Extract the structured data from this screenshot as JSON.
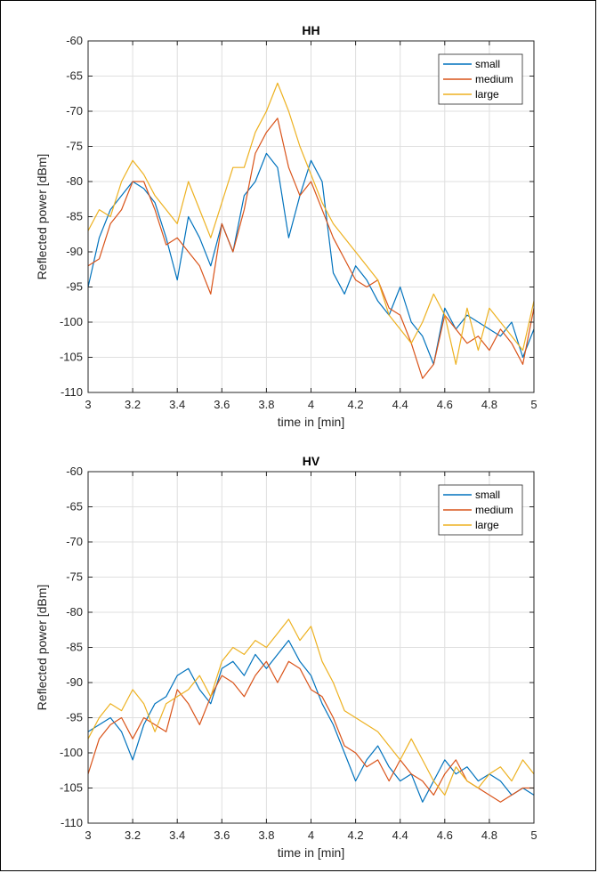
{
  "chart_data": [
    {
      "type": "line",
      "title": "HH",
      "xlabel": "time in [min]",
      "ylabel": "Reflected power [dBm]",
      "xlim": [
        3,
        5
      ],
      "ylim": [
        -110,
        -60
      ],
      "xticks": [
        3,
        3.2,
        3.4,
        3.6,
        3.8,
        4,
        4.2,
        4.4,
        4.6,
        4.8,
        5
      ],
      "xtick_labels": [
        "3",
        "3.2",
        "3.4",
        "3.6",
        "3.8",
        "4",
        "4.2",
        "4.4",
        "4.6",
        "4.8",
        "5"
      ],
      "yticks": [
        -110,
        -105,
        -100,
        -95,
        -90,
        -85,
        -80,
        -75,
        -70,
        -65,
        -60
      ],
      "ytick_labels": [
        "-110",
        "-105",
        "-100",
        "-95",
        "-90",
        "-85",
        "-80",
        "-75",
        "-70",
        "-65",
        "-60"
      ],
      "grid": true,
      "legend_position": "top-right",
      "x": [
        3.0,
        3.05,
        3.1,
        3.15,
        3.2,
        3.25,
        3.3,
        3.35,
        3.4,
        3.45,
        3.5,
        3.55,
        3.6,
        3.65,
        3.7,
        3.75,
        3.8,
        3.85,
        3.9,
        3.95,
        4.0,
        4.05,
        4.1,
        4.15,
        4.2,
        4.25,
        4.3,
        4.35,
        4.4,
        4.45,
        4.5,
        4.55,
        4.6,
        4.65,
        4.7,
        4.75,
        4.8,
        4.85,
        4.9,
        4.95,
        5.0
      ],
      "series": [
        {
          "name": "small",
          "color": "#0072BD",
          "values": [
            -95,
            -88,
            -84,
            -82,
            -80,
            -81,
            -83,
            -88,
            -94,
            -85,
            -88,
            -92,
            -86,
            -90,
            -82,
            -80,
            -76,
            -78,
            -88,
            -82,
            -77,
            -80,
            -93,
            -96,
            -92,
            -94,
            -97,
            -99,
            -95,
            -100,
            -102,
            -106,
            -98,
            -101,
            -99,
            -100,
            -101,
            -102,
            -100,
            -105,
            -101
          ]
        },
        {
          "name": "medium",
          "color": "#D95319",
          "values": [
            -92,
            -91,
            -86,
            -84,
            -80,
            -80,
            -84,
            -89,
            -88,
            -90,
            -92,
            -96,
            -86,
            -90,
            -84,
            -76,
            -73,
            -71,
            -78,
            -82,
            -80,
            -84,
            -88,
            -91,
            -94,
            -95,
            -94,
            -98,
            -99,
            -103,
            -108,
            -106,
            -99,
            -101,
            -103,
            -102,
            -104,
            -101,
            -103,
            -106,
            -98
          ]
        },
        {
          "name": "large",
          "color": "#EDB120",
          "values": [
            -87,
            -84,
            -85,
            -80,
            -77,
            -79,
            -82,
            -84,
            -86,
            -80,
            -84,
            -88,
            -83,
            -78,
            -78,
            -73,
            -70,
            -66,
            -70,
            -75,
            -79,
            -83,
            -86,
            -88,
            -90,
            -92,
            -94,
            -99,
            -101,
            -103,
            -100,
            -96,
            -99,
            -106,
            -98,
            -104,
            -98,
            -100,
            -102,
            -104,
            -97
          ]
        }
      ]
    },
    {
      "type": "line",
      "title": "HV",
      "xlabel": "time in [min]",
      "ylabel": "Reflected power [dBm]",
      "xlim": [
        3,
        5
      ],
      "ylim": [
        -110,
        -60
      ],
      "xticks": [
        3,
        3.2,
        3.4,
        3.6,
        3.8,
        4,
        4.2,
        4.4,
        4.6,
        4.8,
        5
      ],
      "xtick_labels": [
        "3",
        "3.2",
        "3.4",
        "3.6",
        "3.8",
        "4",
        "4.2",
        "4.4",
        "4.6",
        "4.8",
        "5"
      ],
      "yticks": [
        -110,
        -105,
        -100,
        -95,
        -90,
        -85,
        -80,
        -75,
        -70,
        -65,
        -60
      ],
      "ytick_labels": [
        "-110",
        "-105",
        "-100",
        "-95",
        "-90",
        "-85",
        "-80",
        "-75",
        "-70",
        "-65",
        "-60"
      ],
      "grid": true,
      "legend_position": "top-right",
      "x": [
        3.0,
        3.05,
        3.1,
        3.15,
        3.2,
        3.25,
        3.3,
        3.35,
        3.4,
        3.45,
        3.5,
        3.55,
        3.6,
        3.65,
        3.7,
        3.75,
        3.8,
        3.85,
        3.9,
        3.95,
        4.0,
        4.05,
        4.1,
        4.15,
        4.2,
        4.25,
        4.3,
        4.35,
        4.4,
        4.45,
        4.5,
        4.55,
        4.6,
        4.65,
        4.7,
        4.75,
        4.8,
        4.85,
        4.9,
        4.95,
        5.0
      ],
      "series": [
        {
          "name": "small",
          "color": "#0072BD",
          "values": [
            -97,
            -96,
            -95,
            -97,
            -101,
            -96,
            -93,
            -92,
            -89,
            -88,
            -91,
            -93,
            -88,
            -87,
            -89,
            -86,
            -88,
            -86,
            -84,
            -87,
            -89,
            -93,
            -96,
            -100,
            -104,
            -101,
            -99,
            -102,
            -104,
            -103,
            -107,
            -104,
            -101,
            -103,
            -102,
            -104,
            -103,
            -104,
            -106,
            -105,
            -106
          ]
        },
        {
          "name": "medium",
          "color": "#D95319",
          "values": [
            -103,
            -98,
            -96,
            -95,
            -98,
            -95,
            -96,
            -97,
            -91,
            -93,
            -96,
            -92,
            -89,
            -90,
            -92,
            -89,
            -87,
            -90,
            -87,
            -88,
            -91,
            -92,
            -95,
            -99,
            -100,
            -102,
            -101,
            -104,
            -101,
            -103,
            -104,
            -106,
            -103,
            -101,
            -104,
            -105,
            -106,
            -107,
            -106,
            -105,
            -105
          ]
        },
        {
          "name": "large",
          "color": "#EDB120",
          "values": [
            -98,
            -95,
            -93,
            -94,
            -91,
            -93,
            -97,
            -93,
            -92,
            -91,
            -89,
            -92,
            -87,
            -85,
            -86,
            -84,
            -85,
            -83,
            -81,
            -84,
            -82,
            -87,
            -90,
            -94,
            -95,
            -96,
            -97,
            -99,
            -101,
            -98,
            -101,
            -104,
            -106,
            -102,
            -104,
            -105,
            -103,
            -102,
            -104,
            -101,
            -103
          ]
        }
      ]
    }
  ]
}
